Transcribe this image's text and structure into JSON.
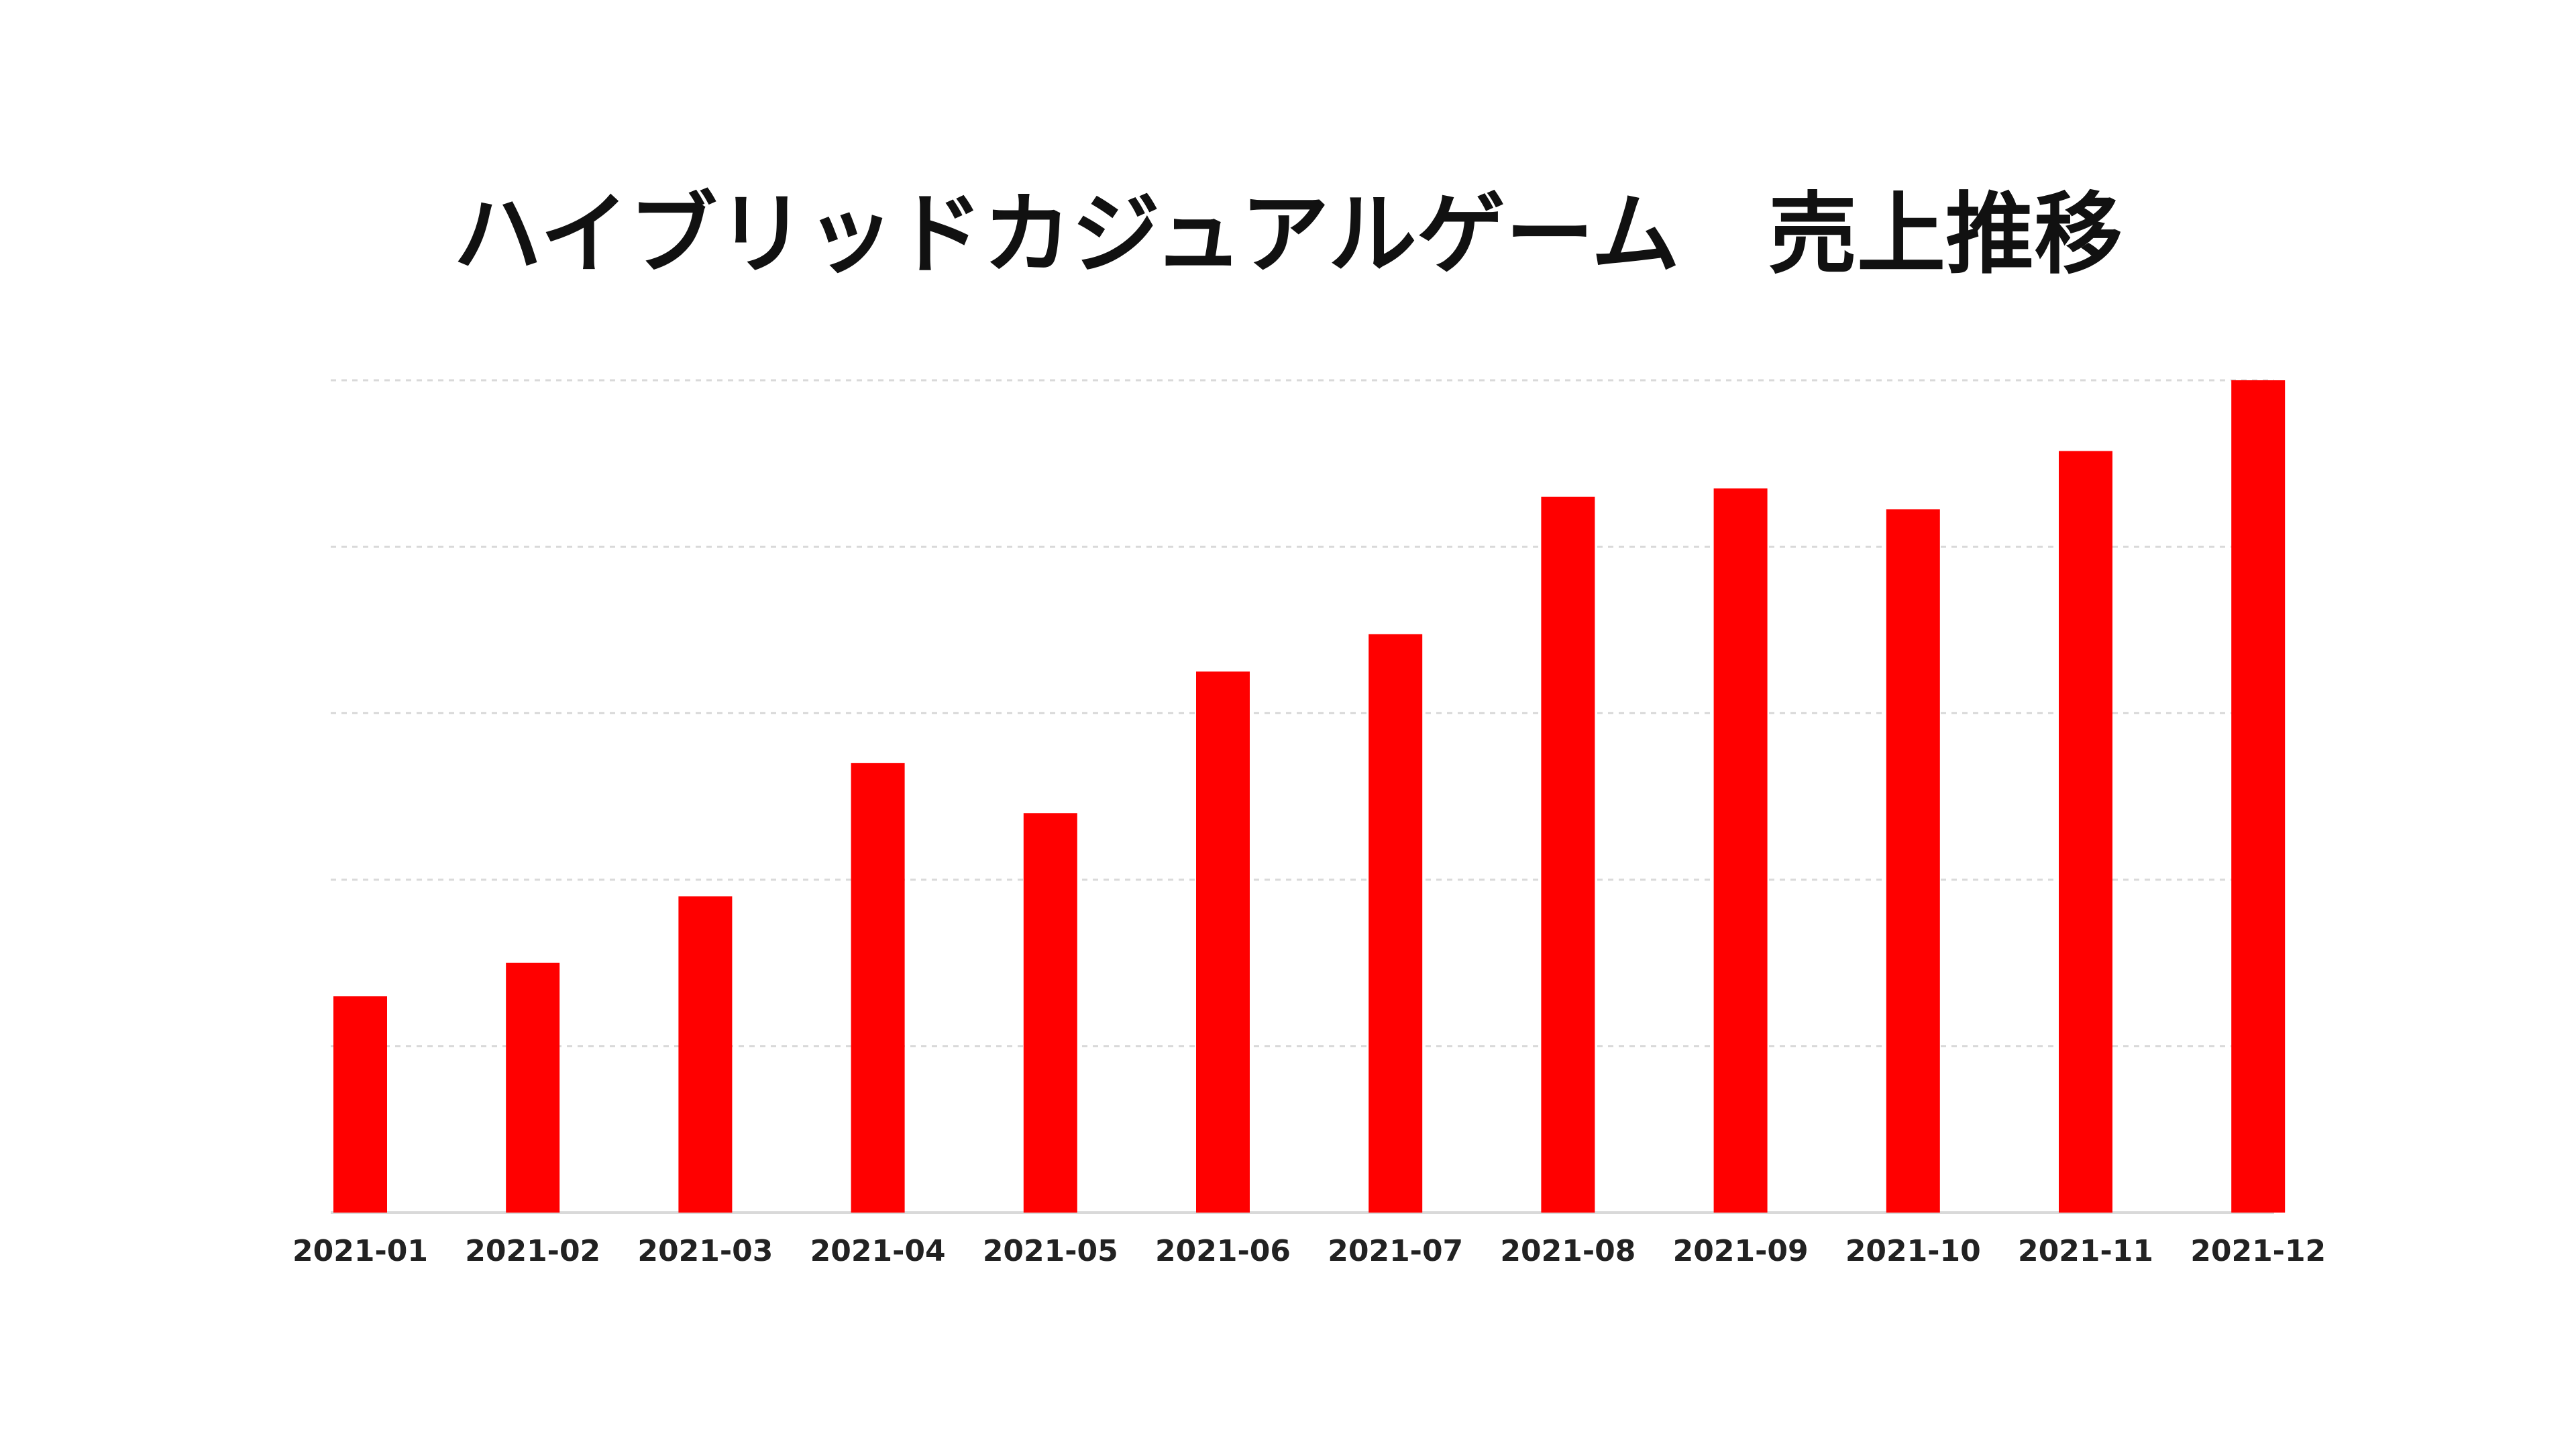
{
  "chart_data": {
    "type": "bar",
    "title": "ハイブリッドカジュアルゲーム　売上推移",
    "xlabel": "",
    "ylabel": "",
    "categories": [
      "2021-01",
      "2021-02",
      "2021-03",
      "2021-04",
      "2021-05",
      "2021-06",
      "2021-07",
      "2021-08",
      "2021-09",
      "2021-10",
      "2021-11",
      "2021-12"
    ],
    "values": [
      26,
      30,
      38,
      54,
      48,
      65,
      69.5,
      86,
      87,
      84.5,
      91.5,
      100
    ],
    "ylim": [
      0,
      100
    ],
    "y_ticks_labels_visible": false,
    "grid": true,
    "grid_style": "dashed",
    "legend": "none",
    "colors": {
      "bar": "#ff0000",
      "grid": "#d9d9d9",
      "title": "#111111",
      "tick_label": "#222222",
      "background": "#ffffff"
    }
  }
}
